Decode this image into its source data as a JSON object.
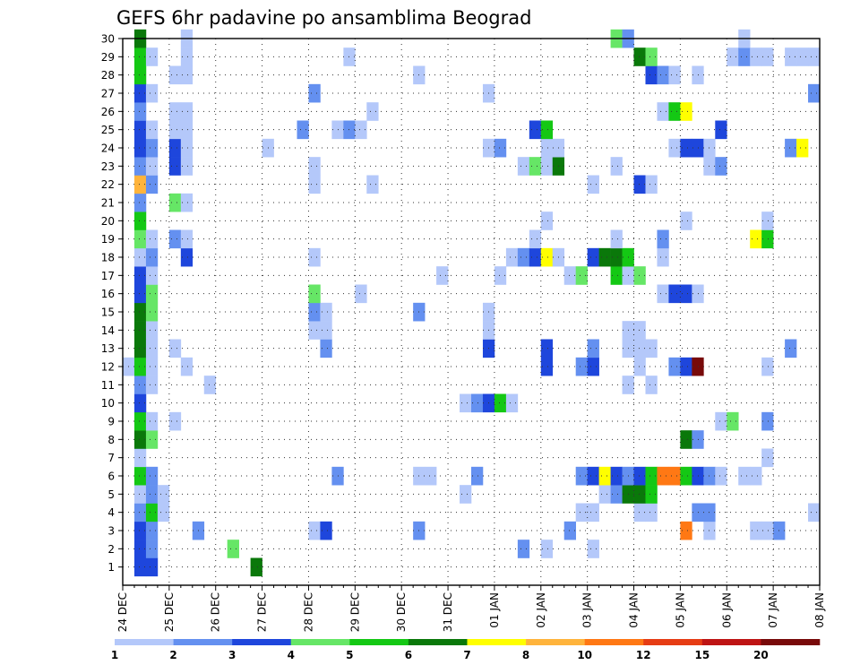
{
  "chart_data": {
    "type": "heatmap",
    "title": "GEFS 6hr padavine po ansamblima Beograd",
    "xlabel": "",
    "ylabel": "",
    "x_ticks": [
      "24 DEC",
      "25 DEC",
      "26 DEC",
      "27 DEC",
      "28 DEC",
      "29 DEC",
      "30 DEC",
      "31 DEC",
      "01 JAN",
      "02 JAN",
      "03 JAN",
      "04 JAN",
      "05 JAN",
      "06 JAN",
      "07 JAN",
      "08 JAN"
    ],
    "y_ticks": [
      "1",
      "2",
      "3",
      "4",
      "5",
      "6",
      "7",
      "8",
      "9",
      "10",
      "11",
      "12",
      "13",
      "14",
      "15",
      "16",
      "17",
      "18",
      "19",
      "20",
      "21",
      "22",
      "23",
      "24",
      "25",
      "26",
      "27",
      "28",
      "29",
      "30"
    ],
    "steps_per_day": 4,
    "n_steps": 60,
    "ylim": [
      0,
      30
    ],
    "grid": "dotted",
    "colorbar": {
      "labels": [
        "1",
        "2",
        "3",
        "4",
        "5",
        "6",
        "7",
        "8",
        "10",
        "12",
        "15",
        "20"
      ],
      "colors": [
        "#b4c8fa",
        "#6490f0",
        "#1e46dc",
        "#66e666",
        "#14c814",
        "#0a780a",
        "#ffff00",
        "#ffb43c",
        "#ff7814",
        "#e63c14",
        "#be1414",
        "#780a0a"
      ]
    },
    "cells": [
      [
        1,
        1,
        3
      ],
      [
        1,
        2,
        3
      ],
      [
        1,
        11,
        6
      ],
      [
        2,
        1,
        3
      ],
      [
        2,
        2,
        2
      ],
      [
        2,
        9,
        4
      ],
      [
        2,
        34,
        2
      ],
      [
        2,
        36,
        1
      ],
      [
        2,
        40,
        1
      ],
      [
        3,
        1,
        3
      ],
      [
        3,
        2,
        2
      ],
      [
        3,
        6,
        2
      ],
      [
        3,
        16,
        1
      ],
      [
        3,
        17,
        3
      ],
      [
        3,
        25,
        2
      ],
      [
        3,
        38,
        2
      ],
      [
        3,
        48,
        9
      ],
      [
        3,
        50,
        1
      ],
      [
        3,
        54,
        1
      ],
      [
        3,
        55,
        1
      ],
      [
        3,
        56,
        2
      ],
      [
        4,
        1,
        2
      ],
      [
        4,
        2,
        5
      ],
      [
        4,
        3,
        1
      ],
      [
        4,
        39,
        1
      ],
      [
        4,
        40,
        1
      ],
      [
        4,
        44,
        1
      ],
      [
        4,
        45,
        1
      ],
      [
        4,
        49,
        2
      ],
      [
        4,
        50,
        2
      ],
      [
        4,
        59,
        1
      ],
      [
        5,
        1,
        1
      ],
      [
        5,
        2,
        2
      ],
      [
        5,
        3,
        1
      ],
      [
        5,
        29,
        1
      ],
      [
        5,
        41,
        1
      ],
      [
        5,
        42,
        2
      ],
      [
        5,
        43,
        6
      ],
      [
        5,
        44,
        6
      ],
      [
        5,
        45,
        5
      ],
      [
        6,
        1,
        5
      ],
      [
        6,
        2,
        2
      ],
      [
        6,
        18,
        2
      ],
      [
        6,
        25,
        1
      ],
      [
        6,
        26,
        1
      ],
      [
        6,
        30,
        2
      ],
      [
        6,
        39,
        2
      ],
      [
        6,
        40,
        3
      ],
      [
        6,
        41,
        7
      ],
      [
        6,
        42,
        3
      ],
      [
        6,
        43,
        2
      ],
      [
        6,
        44,
        3
      ],
      [
        6,
        45,
        5
      ],
      [
        6,
        46,
        9
      ],
      [
        6,
        47,
        9
      ],
      [
        6,
        48,
        5
      ],
      [
        6,
        49,
        3
      ],
      [
        6,
        50,
        2
      ],
      [
        6,
        51,
        1
      ],
      [
        6,
        53,
        1
      ],
      [
        6,
        54,
        1
      ],
      [
        7,
        1,
        1
      ],
      [
        7,
        55,
        1
      ],
      [
        8,
        1,
        6
      ],
      [
        8,
        2,
        4
      ],
      [
        8,
        48,
        6
      ],
      [
        8,
        49,
        2
      ],
      [
        9,
        1,
        5
      ],
      [
        9,
        2,
        1
      ],
      [
        9,
        4,
        1
      ],
      [
        9,
        51,
        1
      ],
      [
        9,
        52,
        4
      ],
      [
        9,
        55,
        2
      ],
      [
        10,
        1,
        3
      ],
      [
        10,
        29,
        1
      ],
      [
        10,
        30,
        2
      ],
      [
        10,
        31,
        3
      ],
      [
        10,
        32,
        5
      ],
      [
        10,
        33,
        1
      ],
      [
        11,
        1,
        2
      ],
      [
        11,
        2,
        1
      ],
      [
        11,
        7,
        1
      ],
      [
        11,
        43,
        1
      ],
      [
        11,
        45,
        1
      ],
      [
        12,
        0,
        1
      ],
      [
        12,
        1,
        5
      ],
      [
        12,
        2,
        1
      ],
      [
        12,
        5,
        1
      ],
      [
        12,
        36,
        3
      ],
      [
        12,
        39,
        2
      ],
      [
        12,
        40,
        3
      ],
      [
        12,
        44,
        1
      ],
      [
        12,
        47,
        2
      ],
      [
        12,
        48,
        3
      ],
      [
        12,
        49,
        12
      ],
      [
        12,
        55,
        1
      ],
      [
        13,
        1,
        6
      ],
      [
        13,
        2,
        1
      ],
      [
        13,
        4,
        1
      ],
      [
        13,
        17,
        2
      ],
      [
        13,
        31,
        3
      ],
      [
        13,
        36,
        3
      ],
      [
        13,
        40,
        2
      ],
      [
        13,
        43,
        1
      ],
      [
        13,
        44,
        1
      ],
      [
        13,
        45,
        1
      ],
      [
        13,
        57,
        2
      ],
      [
        14,
        1,
        6
      ],
      [
        14,
        2,
        1
      ],
      [
        14,
        16,
        1
      ],
      [
        14,
        17,
        1
      ],
      [
        14,
        31,
        1
      ],
      [
        14,
        43,
        1
      ],
      [
        14,
        44,
        1
      ],
      [
        15,
        1,
        6
      ],
      [
        15,
        2,
        4
      ],
      [
        15,
        16,
        2
      ],
      [
        15,
        17,
        1
      ],
      [
        15,
        25,
        2
      ],
      [
        15,
        31,
        1
      ],
      [
        16,
        1,
        3
      ],
      [
        16,
        2,
        4
      ],
      [
        16,
        16,
        4
      ],
      [
        16,
        20,
        1
      ],
      [
        16,
        46,
        1
      ],
      [
        16,
        47,
        3
      ],
      [
        16,
        48,
        3
      ],
      [
        16,
        49,
        1
      ],
      [
        17,
        1,
        3
      ],
      [
        17,
        2,
        1
      ],
      [
        17,
        27,
        1
      ],
      [
        17,
        32,
        1
      ],
      [
        17,
        38,
        1
      ],
      [
        17,
        39,
        4
      ],
      [
        17,
        42,
        5
      ],
      [
        17,
        43,
        1
      ],
      [
        17,
        44,
        4
      ],
      [
        18,
        1,
        1
      ],
      [
        18,
        2,
        2
      ],
      [
        18,
        5,
        3
      ],
      [
        18,
        16,
        1
      ],
      [
        18,
        33,
        1
      ],
      [
        18,
        34,
        2
      ],
      [
        18,
        35,
        3
      ],
      [
        18,
        36,
        7
      ],
      [
        18,
        37,
        1
      ],
      [
        18,
        40,
        3
      ],
      [
        18,
        41,
        6
      ],
      [
        18,
        42,
        6
      ],
      [
        18,
        43,
        5
      ],
      [
        18,
        46,
        1
      ],
      [
        19,
        1,
        4
      ],
      [
        19,
        2,
        1
      ],
      [
        19,
        4,
        2
      ],
      [
        19,
        5,
        1
      ],
      [
        19,
        35,
        1
      ],
      [
        19,
        42,
        1
      ],
      [
        19,
        46,
        2
      ],
      [
        19,
        54,
        7
      ],
      [
        19,
        55,
        5
      ],
      [
        20,
        1,
        5
      ],
      [
        20,
        36,
        1
      ],
      [
        20,
        48,
        1
      ],
      [
        20,
        55,
        1
      ],
      [
        21,
        1,
        2
      ],
      [
        21,
        4,
        4
      ],
      [
        21,
        5,
        1
      ],
      [
        22,
        1,
        8
      ],
      [
        22,
        2,
        2
      ],
      [
        22,
        16,
        1
      ],
      [
        22,
        21,
        1
      ],
      [
        22,
        40,
        1
      ],
      [
        22,
        44,
        3
      ],
      [
        22,
        45,
        1
      ],
      [
        23,
        1,
        2
      ],
      [
        23,
        2,
        1
      ],
      [
        23,
        4,
        3
      ],
      [
        23,
        5,
        1
      ],
      [
        23,
        16,
        1
      ],
      [
        23,
        34,
        1
      ],
      [
        23,
        35,
        4
      ],
      [
        23,
        36,
        1
      ],
      [
        23,
        37,
        6
      ],
      [
        23,
        42,
        1
      ],
      [
        23,
        50,
        1
      ],
      [
        23,
        51,
        2
      ],
      [
        24,
        1,
        3
      ],
      [
        24,
        2,
        2
      ],
      [
        24,
        4,
        3
      ],
      [
        24,
        5,
        1
      ],
      [
        24,
        12,
        1
      ],
      [
        24,
        31,
        1
      ],
      [
        24,
        32,
        2
      ],
      [
        24,
        36,
        1
      ],
      [
        24,
        37,
        1
      ],
      [
        24,
        47,
        1
      ],
      [
        24,
        48,
        3
      ],
      [
        24,
        49,
        3
      ],
      [
        24,
        50,
        1
      ],
      [
        24,
        57,
        2
      ],
      [
        24,
        58,
        7
      ],
      [
        25,
        1,
        3
      ],
      [
        25,
        2,
        1
      ],
      [
        25,
        4,
        1
      ],
      [
        25,
        5,
        1
      ],
      [
        25,
        15,
        2
      ],
      [
        25,
        18,
        1
      ],
      [
        25,
        19,
        2
      ],
      [
        25,
        20,
        1
      ],
      [
        25,
        35,
        3
      ],
      [
        25,
        36,
        5
      ],
      [
        25,
        51,
        3
      ],
      [
        26,
        1,
        2
      ],
      [
        26,
        4,
        1
      ],
      [
        26,
        5,
        1
      ],
      [
        26,
        21,
        1
      ],
      [
        26,
        46,
        1
      ],
      [
        26,
        47,
        5
      ],
      [
        26,
        48,
        7
      ],
      [
        27,
        1,
        3
      ],
      [
        27,
        2,
        1
      ],
      [
        27,
        16,
        2
      ],
      [
        27,
        31,
        1
      ],
      [
        27,
        59,
        2
      ],
      [
        28,
        1,
        5
      ],
      [
        28,
        4,
        1
      ],
      [
        28,
        5,
        1
      ],
      [
        28,
        25,
        1
      ],
      [
        28,
        45,
        3
      ],
      [
        28,
        46,
        2
      ],
      [
        28,
        47,
        1
      ],
      [
        28,
        49,
        1
      ],
      [
        29,
        1,
        5
      ],
      [
        29,
        2,
        1
      ],
      [
        29,
        5,
        1
      ],
      [
        29,
        19,
        1
      ],
      [
        29,
        44,
        6
      ],
      [
        29,
        45,
        4
      ],
      [
        29,
        52,
        1
      ],
      [
        29,
        53,
        2
      ],
      [
        29,
        54,
        1
      ],
      [
        29,
        55,
        1
      ],
      [
        29,
        57,
        1
      ],
      [
        29,
        58,
        1
      ],
      [
        29,
        59,
        1
      ],
      [
        30,
        1,
        6
      ],
      [
        30,
        5,
        1
      ],
      [
        30,
        42,
        4
      ],
      [
        30,
        43,
        2
      ],
      [
        30,
        53,
        1
      ]
    ]
  }
}
